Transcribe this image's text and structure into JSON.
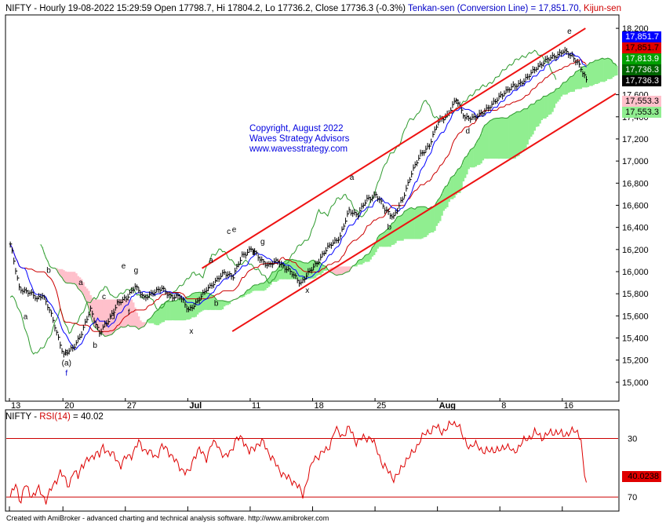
{
  "header": {
    "symbol": "NIFTY",
    "ohlc": " - Hourly 19-08-2022 15:29:59 Open 17798.7, Hi 17804.2, Lo 17736.2, Close 17736.3 (-0.3%) ",
    "tenkan": "Tenkan-sen (Conversion Line) = 17,851.70, ",
    "kijun": "Kijun-sen"
  },
  "copyright": {
    "line1": "Copyright, August 2022",
    "line2": "Waves Strategy Advisors",
    "line3": "www.wavesstrategy.com"
  },
  "footer": "Created with AmiBroker - advanced charting and technical analysis software. http://www.amibroker.com",
  "colors": {
    "price": "#000000",
    "tenkan": "#0000ff",
    "kijun": "#cc0000",
    "span_a": "#2d9a2d",
    "cloud_bull": "#90ee90",
    "cloud_bear": "#ffc0cb",
    "channel": "#ee1111",
    "rsi": "#dd0000"
  },
  "chart_data": [
    {
      "type": "line",
      "panel": "price",
      "x_tick_labels": [
        "13",
        "20",
        "27",
        "Jul",
        "11",
        "18",
        "25",
        "Aug",
        "8",
        "16"
      ],
      "x_tick_bars": [
        0,
        30,
        65,
        100,
        135,
        170,
        205,
        240,
        275,
        310
      ],
      "ylim": [
        14850,
        18300
      ],
      "y_ticks": [
        15000,
        15200,
        15400,
        15600,
        15800,
        16000,
        16200,
        16400,
        16600,
        16800,
        17000,
        17200,
        17400,
        17600,
        18200
      ],
      "bars_total": 340,
      "close_anchors": [
        [
          0,
          16250
        ],
        [
          5,
          15850
        ],
        [
          10,
          15820
        ],
        [
          15,
          15750
        ],
        [
          18,
          15800
        ],
        [
          22,
          15650
        ],
        [
          26,
          15450
        ],
        [
          30,
          15250
        ],
        [
          35,
          15300
        ],
        [
          40,
          15450
        ],
        [
          45,
          15650
        ],
        [
          50,
          15450
        ],
        [
          55,
          15550
        ],
        [
          60,
          15720
        ],
        [
          65,
          15750
        ],
        [
          70,
          15880
        ],
        [
          75,
          15750
        ],
        [
          80,
          15820
        ],
        [
          85,
          15840
        ],
        [
          90,
          15780
        ],
        [
          95,
          15770
        ],
        [
          100,
          15660
        ],
        [
          105,
          15720
        ],
        [
          110,
          15850
        ],
        [
          115,
          15900
        ],
        [
          120,
          16000
        ],
        [
          125,
          15950
        ],
        [
          130,
          16150
        ],
        [
          135,
          16200
        ],
        [
          140,
          16120
        ],
        [
          145,
          16050
        ],
        [
          150,
          16100
        ],
        [
          155,
          16020
        ],
        [
          160,
          15950
        ],
        [
          163,
          15900
        ],
        [
          168,
          16000
        ],
        [
          175,
          16150
        ],
        [
          180,
          16250
        ],
        [
          185,
          16320
        ],
        [
          190,
          16550
        ],
        [
          195,
          16520
        ],
        [
          200,
          16650
        ],
        [
          205,
          16700
        ],
        [
          210,
          16560
        ],
        [
          215,
          16500
        ],
        [
          220,
          16650
        ],
        [
          225,
          16900
        ],
        [
          230,
          17050
        ],
        [
          235,
          17150
        ],
        [
          240,
          17350
        ],
        [
          245,
          17420
        ],
        [
          250,
          17550
        ],
        [
          255,
          17400
        ],
        [
          260,
          17380
        ],
        [
          265,
          17450
        ],
        [
          270,
          17500
        ],
        [
          275,
          17600
        ],
        [
          280,
          17650
        ],
        [
          285,
          17700
        ],
        [
          290,
          17750
        ],
        [
          295,
          17850
        ],
        [
          300,
          17900
        ],
        [
          305,
          17950
        ],
        [
          310,
          17990
        ],
        [
          315,
          17950
        ],
        [
          318,
          17900
        ],
        [
          322,
          17760
        ],
        [
          323,
          17736
        ]
      ],
      "wave_labels": [
        {
          "bar": 9,
          "price": 15570,
          "text": "a"
        },
        {
          "bar": 22,
          "price": 15990,
          "text": "b"
        },
        {
          "bar": 32,
          "price": 15250,
          "text": "c"
        },
        {
          "bar": 32,
          "price": 15150,
          "text": "(a)"
        },
        {
          "bar": 32,
          "price": 15060,
          "text": "f"
        },
        {
          "bar": 40,
          "price": 15880,
          "text": "a"
        },
        {
          "bar": 48,
          "price": 15310,
          "text": "b"
        },
        {
          "bar": 53,
          "price": 15750,
          "text": "c"
        },
        {
          "bar": 58,
          "price": 15570,
          "text": "d"
        },
        {
          "bar": 64,
          "price": 16030,
          "text": "e"
        },
        {
          "bar": 67,
          "price": 15610,
          "text": "f"
        },
        {
          "bar": 71,
          "price": 15990,
          "text": "g"
        },
        {
          "bar": 102,
          "price": 15440,
          "text": "x"
        },
        {
          "bar": 113,
          "price": 16080,
          "text": "a"
        },
        {
          "bar": 116,
          "price": 15690,
          "text": "b"
        },
        {
          "bar": 123,
          "price": 16340,
          "text": "c"
        },
        {
          "bar": 126,
          "price": 16360,
          "text": "e"
        },
        {
          "bar": 137,
          "price": 16150,
          "text": "f"
        },
        {
          "bar": 142,
          "price": 16250,
          "text": "g"
        },
        {
          "bar": 167,
          "price": 15810,
          "text": "x"
        },
        {
          "bar": 192,
          "price": 16830,
          "text": "a"
        },
        {
          "bar": 213,
          "price": 16380,
          "text": "b"
        },
        {
          "bar": 251,
          "price": 17520,
          "text": "c"
        },
        {
          "bar": 257,
          "price": 17250,
          "text": "d"
        },
        {
          "bar": 314,
          "price": 18150,
          "text": "e"
        }
      ],
      "channel": {
        "upper": [
          [
            108,
            16030
          ],
          [
            323,
            18200
          ]
        ],
        "lower": [
          [
            125,
            15460
          ],
          [
            340,
            17610
          ]
        ]
      }
    },
    {
      "type": "line",
      "panel": "rsi",
      "name": "RSI(14)",
      "title_prefix": "NIFTY - ",
      "value_text": " = 40.02",
      "ylim": [
        22,
        88
      ],
      "levels": [
        30,
        70
      ],
      "level_labels": [
        "70",
        "30"
      ],
      "last_value_label": "40.0238",
      "anchors": [
        [
          0,
          30
        ],
        [
          3,
          38
        ],
        [
          6,
          27
        ],
        [
          8,
          38
        ],
        [
          12,
          31
        ],
        [
          16,
          35
        ],
        [
          20,
          28
        ],
        [
          25,
          40
        ],
        [
          28,
          47
        ],
        [
          30,
          43
        ],
        [
          33,
          38
        ],
        [
          35,
          47
        ],
        [
          38,
          44
        ],
        [
          40,
          52
        ],
        [
          45,
          56
        ],
        [
          48,
          61
        ],
        [
          50,
          58
        ],
        [
          52,
          64
        ],
        [
          55,
          61
        ],
        [
          58,
          58
        ],
        [
          62,
          52
        ],
        [
          65,
          57
        ],
        [
          68,
          59
        ],
        [
          72,
          67
        ],
        [
          75,
          63
        ],
        [
          78,
          60
        ],
        [
          82,
          58
        ],
        [
          85,
          64
        ],
        [
          88,
          63
        ],
        [
          92,
          55
        ],
        [
          95,
          51
        ],
        [
          98,
          47
        ],
        [
          100,
          46
        ],
        [
          103,
          58
        ],
        [
          106,
          62
        ],
        [
          110,
          57
        ],
        [
          113,
          66
        ],
        [
          116,
          67
        ],
        [
          120,
          56
        ],
        [
          124,
          63
        ],
        [
          127,
          69
        ],
        [
          130,
          71
        ],
        [
          134,
          60
        ],
        [
          138,
          66
        ],
        [
          142,
          67
        ],
        [
          146,
          58
        ],
        [
          150,
          50
        ],
        [
          155,
          43
        ],
        [
          160,
          40
        ],
        [
          164,
          31
        ],
        [
          167,
          45
        ],
        [
          170,
          55
        ],
        [
          174,
          60
        ],
        [
          178,
          62
        ],
        [
          182,
          76
        ],
        [
          186,
          72
        ],
        [
          190,
          77
        ],
        [
          194,
          68
        ],
        [
          198,
          70
        ],
        [
          202,
          71
        ],
        [
          206,
          61
        ],
        [
          209,
          52
        ],
        [
          212,
          47
        ],
        [
          215,
          43
        ],
        [
          218,
          46
        ],
        [
          222,
          56
        ],
        [
          226,
          60
        ],
        [
          230,
          70
        ],
        [
          234,
          74
        ],
        [
          238,
          78
        ],
        [
          242,
          75
        ],
        [
          245,
          77
        ],
        [
          248,
          81
        ],
        [
          251,
          80
        ],
        [
          254,
          70
        ],
        [
          258,
          64
        ],
        [
          262,
          66
        ],
        [
          266,
          60
        ],
        [
          270,
          63
        ],
        [
          274,
          61
        ],
        [
          278,
          66
        ],
        [
          282,
          60
        ],
        [
          286,
          66
        ],
        [
          290,
          70
        ],
        [
          294,
          74
        ],
        [
          298,
          71
        ],
        [
          302,
          73
        ],
        [
          306,
          75
        ],
        [
          310,
          72
        ],
        [
          314,
          75
        ],
        [
          318,
          74
        ],
        [
          320,
          71
        ],
        [
          321,
          55
        ],
        [
          322,
          45
        ],
        [
          323,
          40
        ]
      ]
    }
  ],
  "right_tags": {
    "top_axis": "18,200",
    "tenkan": "17,851.7",
    "kijun": "17,851.7",
    "span_a": "17,813.9",
    "close_green": "17,736.3",
    "close": "17,736.3",
    "cloud_b1": "17,553.3",
    "cloud_b2": "17,553.3"
  }
}
